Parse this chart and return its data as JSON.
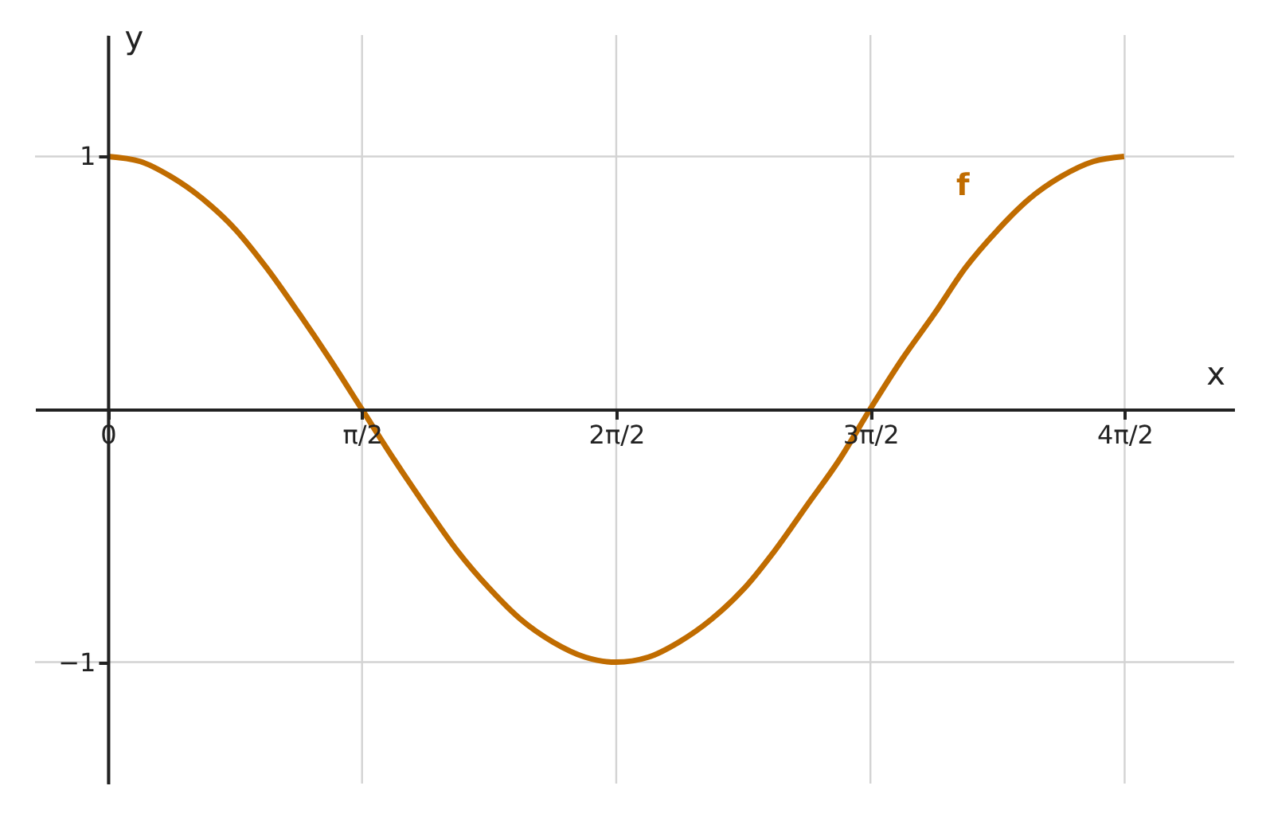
{
  "chart_data": {
    "type": "line",
    "xlabel": "x",
    "ylabel": "y",
    "x": [
      0,
      0.2,
      0.39,
      0.59,
      0.79,
      0.98,
      1.18,
      1.37,
      1.57,
      1.77,
      1.96,
      2.16,
      2.36,
      2.55,
      2.75,
      2.95,
      3.14,
      3.34,
      3.53,
      3.73,
      3.93,
      4.12,
      4.32,
      4.52,
      4.71,
      4.91,
      5.11,
      5.3,
      5.5,
      5.69,
      5.89,
      6.09,
      6.28
    ],
    "series": [
      {
        "name": "f",
        "color": "#c06c00",
        "values": [
          1,
          0.98,
          0.92,
          0.83,
          0.71,
          0.56,
          0.38,
          0.2,
          0,
          -0.2,
          -0.38,
          -0.56,
          -0.71,
          -0.83,
          -0.92,
          -0.98,
          -1,
          -0.98,
          -0.92,
          -0.83,
          -0.71,
          -0.56,
          -0.38,
          -0.2,
          0,
          0.2,
          0.38,
          0.56,
          0.71,
          0.83,
          0.92,
          0.98,
          1
        ]
      }
    ],
    "xlim": [
      -0.45,
      6.96
    ],
    "ylim": [
      -1.48,
      1.48
    ],
    "xticks": [
      0,
      {
        "value": 1.5708,
        "label": "π/2"
      },
      {
        "value": 3.1416,
        "label": "2π/2"
      },
      {
        "value": 4.7124,
        "label": "3π/2"
      },
      {
        "value": 6.2832,
        "label": "4π/2"
      }
    ],
    "yticks": [
      1,
      {
        "value": -1,
        "label": "−1"
      }
    ],
    "grid": true,
    "marker": "none",
    "line_style": "solid"
  }
}
